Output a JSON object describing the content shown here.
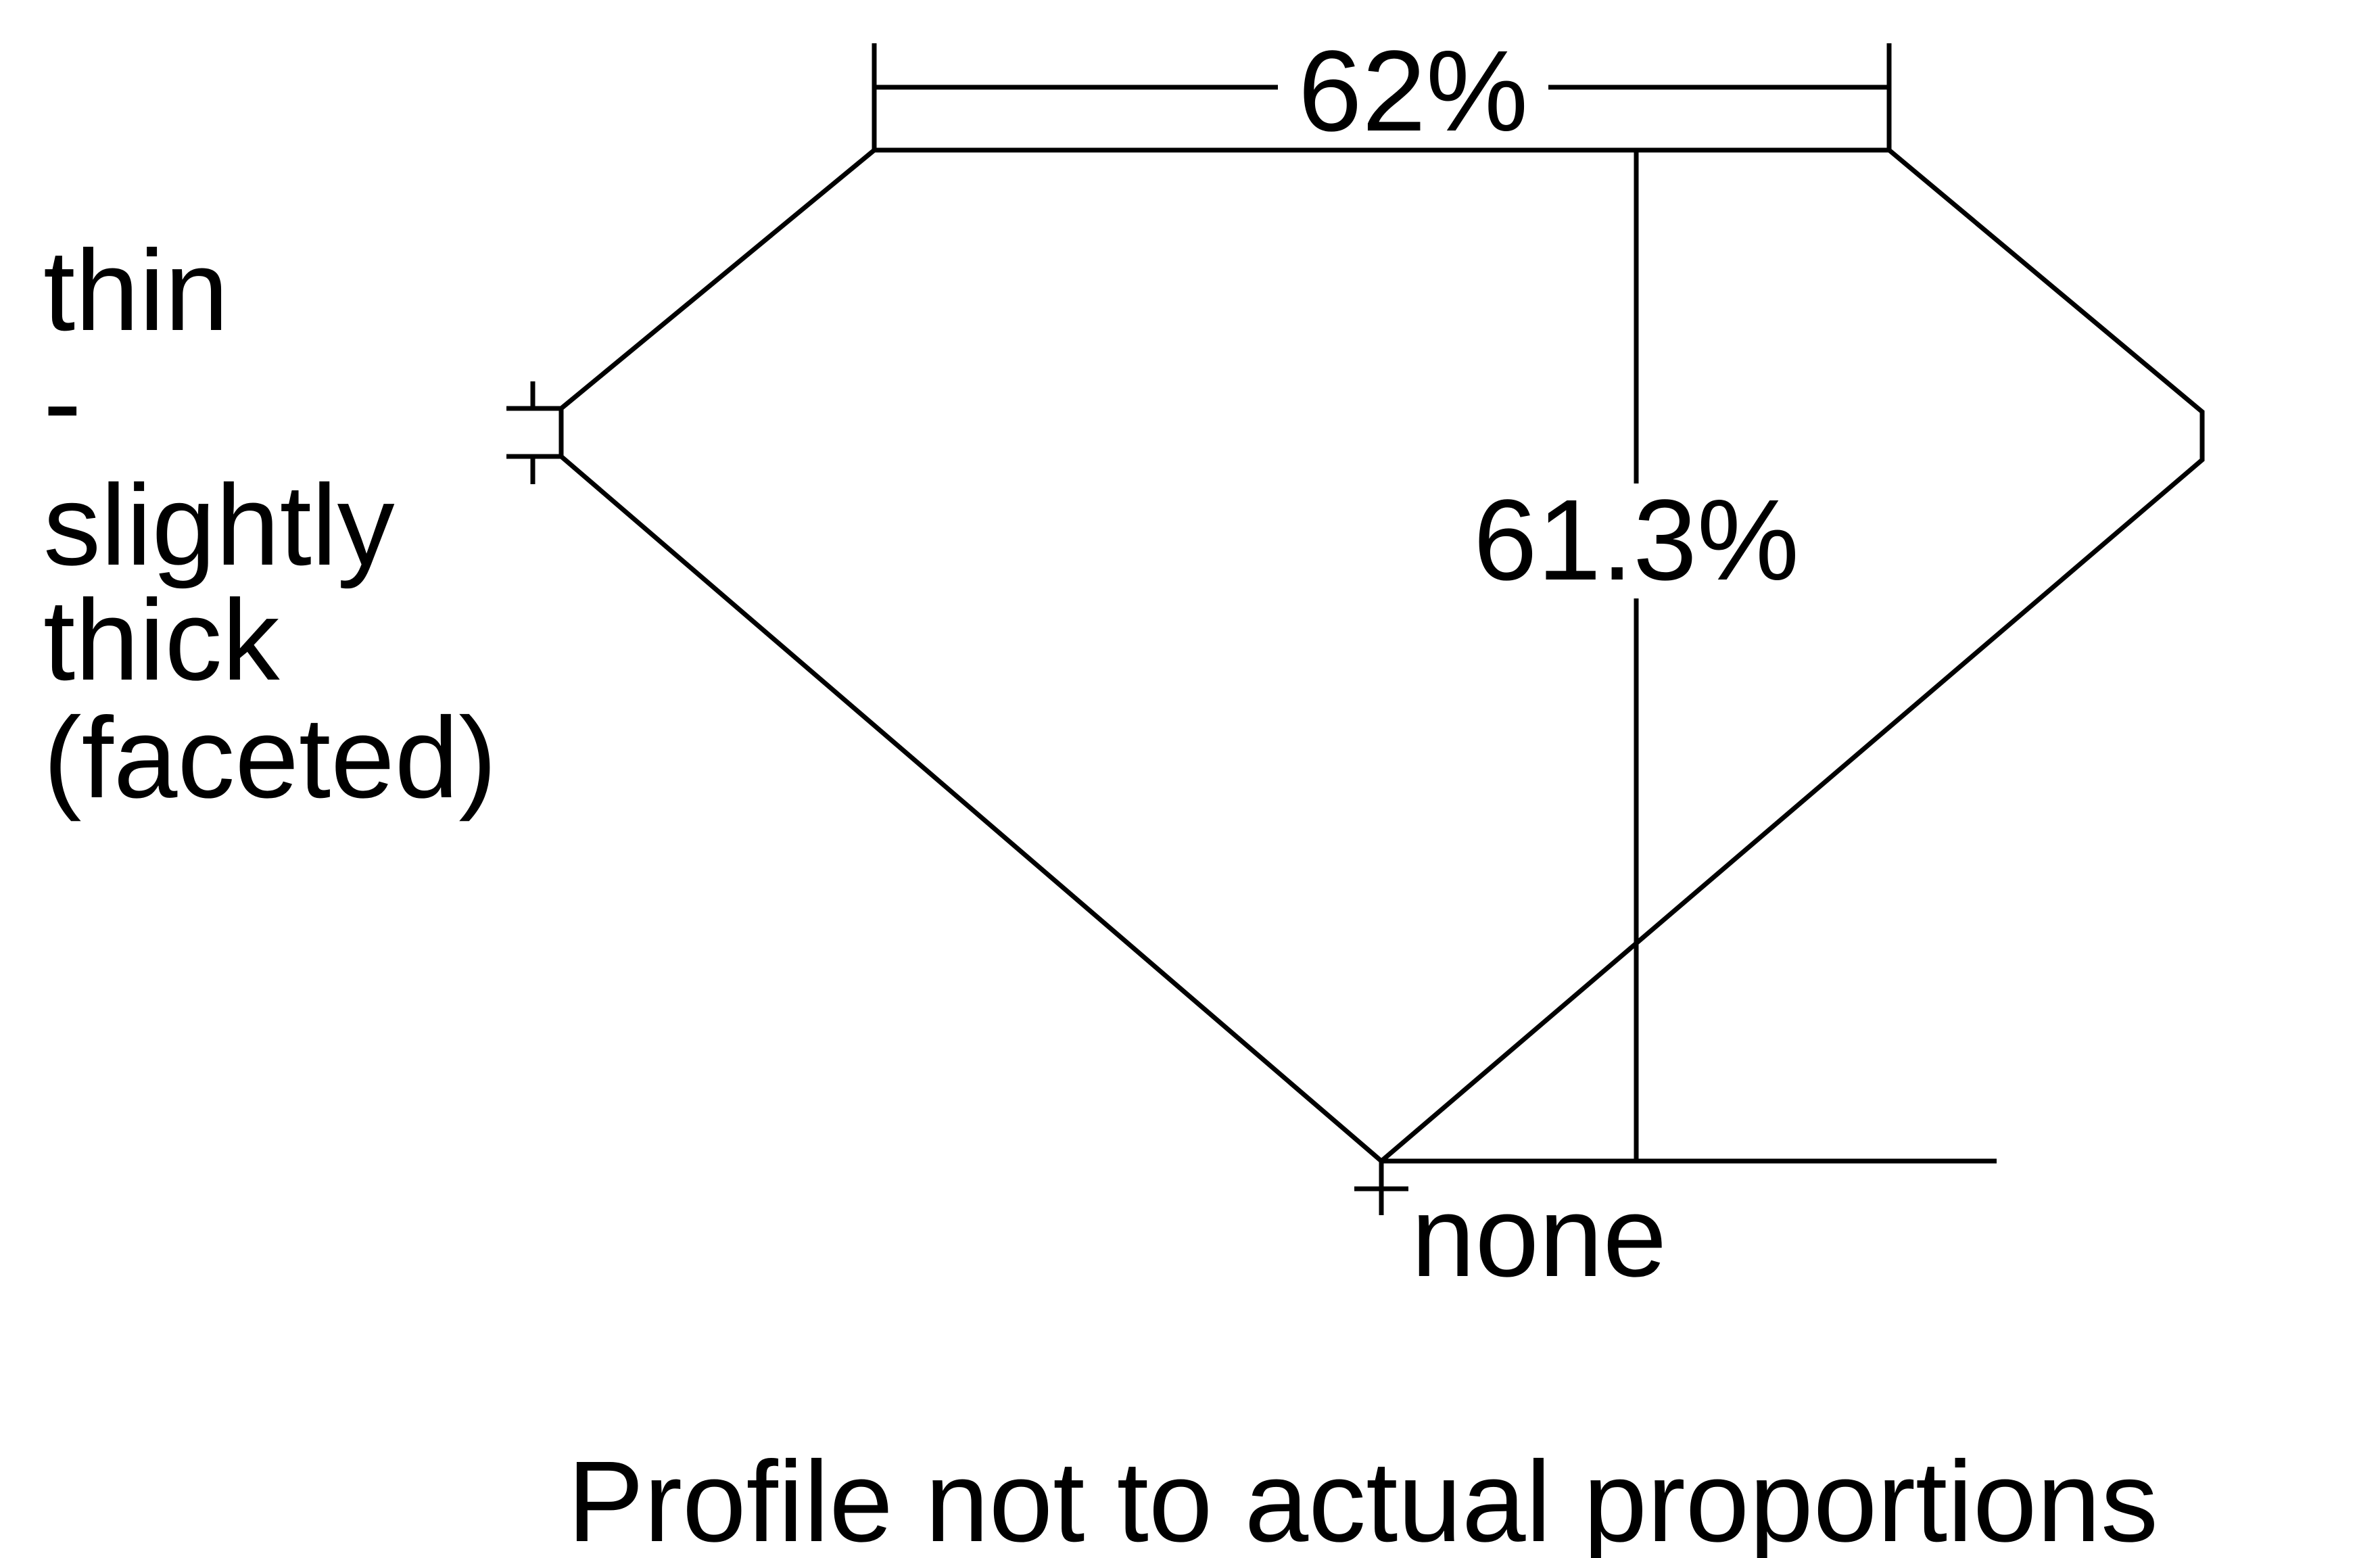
{
  "labels": {
    "table_pct": "62%",
    "depth_pct": "61.3%",
    "culet": "none",
    "girdle_lines": [
      "thin",
      "-",
      "slightly",
      "thick",
      "(faceted)"
    ],
    "footer": "Profile not to actual proportions"
  },
  "colors": {
    "line": "#000000",
    "background": "#ffffff"
  }
}
